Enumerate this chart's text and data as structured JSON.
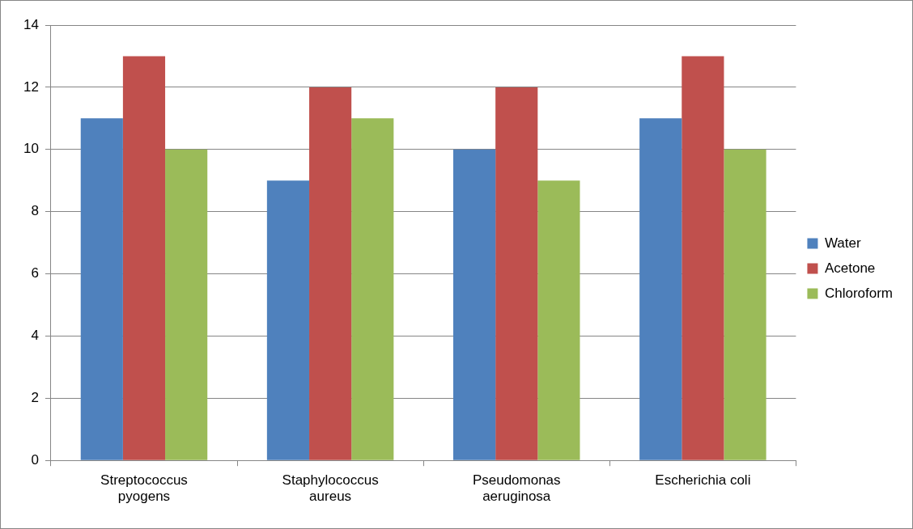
{
  "chart_data": {
    "type": "bar",
    "categories": [
      "Streptococcus pyogens",
      "Staphylococcus aureus",
      "Pseudomonas aeruginosa",
      "Escherichia coli"
    ],
    "series": [
      {
        "name": "Water",
        "color": "#4f81bd",
        "values": [
          11,
          9,
          10,
          11
        ]
      },
      {
        "name": "Acetone",
        "color": "#c0504d",
        "values": [
          13,
          12,
          12,
          13
        ]
      },
      {
        "name": "Chloroform",
        "color": "#9bbb59",
        "values": [
          10,
          11,
          9,
          10
        ]
      }
    ],
    "ylim": [
      0,
      14
    ],
    "yticks": [
      0,
      2,
      4,
      6,
      8,
      10,
      12,
      14
    ],
    "grid": "y",
    "legend": "right"
  }
}
